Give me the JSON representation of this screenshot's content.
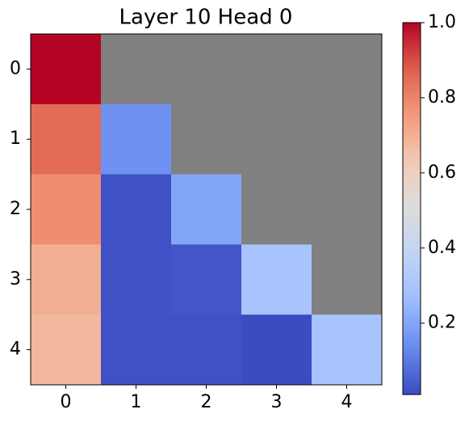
{
  "chart_data": {
    "type": "heatmap",
    "title": "Layer 10 Head 0",
    "x_categories": [
      "0",
      "1",
      "2",
      "3",
      "4"
    ],
    "y_categories": [
      "0",
      "1",
      "2",
      "3",
      "4"
    ],
    "values": [
      [
        1.0,
        null,
        null,
        null,
        null
      ],
      [
        0.85,
        0.15,
        null,
        null,
        null
      ],
      [
        0.78,
        0.02,
        0.2,
        null,
        null
      ],
      [
        0.7,
        0.02,
        0.03,
        0.3,
        null
      ],
      [
        0.68,
        0.02,
        0.02,
        0.01,
        0.3
      ]
    ],
    "colormap": "coolwarm",
    "mask_color": "#808080",
    "clim": [
      0.01,
      1.0
    ],
    "cticks": [
      {
        "value": 0.2,
        "label": "0.2"
      },
      {
        "value": 0.4,
        "label": "0.4"
      },
      {
        "value": 0.6,
        "label": "0.6"
      },
      {
        "value": 0.8,
        "label": "0.8"
      },
      {
        "value": 1.0,
        "label": "1.0"
      }
    ]
  }
}
